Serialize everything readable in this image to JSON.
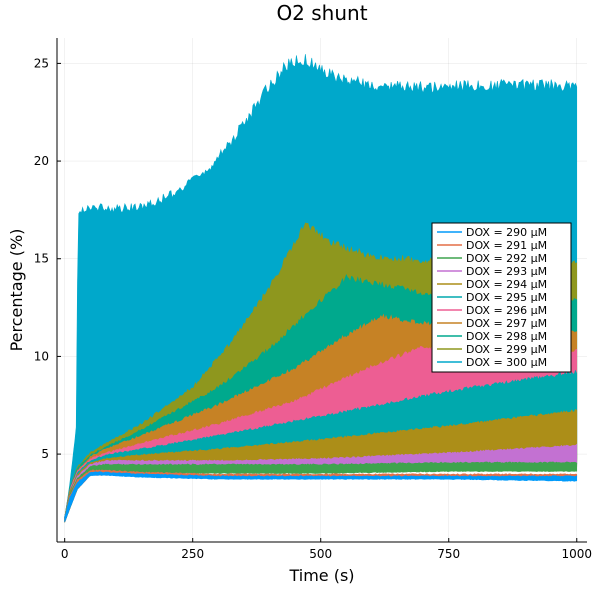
{
  "chart_data": {
    "type": "line",
    "title": "O2 shunt",
    "xlabel": "Time (s)",
    "ylabel": "Percentage (%)",
    "xlim": [
      -15,
      1020
    ],
    "ylim": [
      0.5,
      26.3
    ],
    "xticks": [
      0,
      250,
      500,
      750,
      1000
    ],
    "xtick_labels": [
      "0",
      "250",
      "500",
      "750",
      "1000"
    ],
    "yticks": [
      5,
      10,
      15,
      20,
      25
    ],
    "ytick_labels": [
      "5",
      "10",
      "15",
      "20",
      "25"
    ],
    "grid": true,
    "legend_position": "right",
    "series": [
      {
        "name": "DOX = 290 μM",
        "color": "#009AFA",
        "x": [
          0,
          10,
          25,
          50,
          80,
          150,
          300,
          500,
          750,
          1000
        ],
        "upper": [
          1.8,
          2.8,
          3.6,
          4.1,
          4.1,
          4.0,
          3.9,
          3.9,
          3.9,
          3.9
        ],
        "lower": [
          1.5,
          2.2,
          3.2,
          3.9,
          3.9,
          3.8,
          3.7,
          3.7,
          3.7,
          3.6
        ]
      },
      {
        "name": "DOX = 291 μM",
        "color": "#E36F47",
        "x": [
          0,
          10,
          25,
          50,
          80,
          150,
          300,
          500,
          750,
          1000
        ],
        "upper": [
          1.8,
          2.9,
          3.7,
          4.2,
          4.2,
          4.1,
          4.0,
          4.0,
          4.0,
          4.0
        ],
        "lower": [
          1.5,
          2.2,
          3.2,
          3.9,
          3.9,
          3.9,
          3.8,
          3.8,
          3.8,
          3.8
        ]
      },
      {
        "name": "DOX = 292 μM",
        "color": "#3EA44E",
        "x": [
          0,
          10,
          25,
          50,
          80,
          150,
          300,
          500,
          750,
          1000
        ],
        "upper": [
          1.8,
          3.0,
          3.8,
          4.4,
          4.5,
          4.5,
          4.5,
          4.5,
          4.6,
          4.6
        ],
        "lower": [
          1.5,
          2.2,
          3.2,
          3.9,
          4.0,
          4.0,
          4.0,
          4.0,
          4.1,
          4.1
        ]
      },
      {
        "name": "DOX = 293 μM",
        "color": "#C371D2",
        "x": [
          0,
          10,
          25,
          50,
          80,
          150,
          300,
          500,
          750,
          1000
        ],
        "upper": [
          1.8,
          3.0,
          3.9,
          4.5,
          4.7,
          4.7,
          4.7,
          4.8,
          5.1,
          5.5
        ],
        "lower": [
          1.5,
          2.2,
          3.2,
          3.9,
          4.1,
          4.2,
          4.1,
          4.1,
          4.2,
          4.3
        ]
      },
      {
        "name": "DOX = 294 μM",
        "color": "#AC8E18",
        "x": [
          0,
          10,
          25,
          50,
          80,
          150,
          300,
          500,
          750,
          1000
        ],
        "upper": [
          1.8,
          3.1,
          4.0,
          4.6,
          4.8,
          5.0,
          5.3,
          5.8,
          6.5,
          7.3
        ],
        "lower": [
          1.5,
          2.2,
          3.2,
          3.9,
          4.2,
          4.2,
          4.2,
          4.2,
          4.3,
          4.3
        ]
      },
      {
        "name": "DOX = 295 μM",
        "color": "#00A9AD",
        "x": [
          0,
          10,
          25,
          50,
          80,
          150,
          300,
          500,
          750,
          1000
        ],
        "upper": [
          1.8,
          3.1,
          4.1,
          4.7,
          5.0,
          5.3,
          6.0,
          7.0,
          8.3,
          9.3
        ],
        "lower": [
          1.5,
          2.2,
          3.2,
          3.9,
          4.2,
          4.2,
          4.2,
          4.2,
          4.3,
          4.4
        ]
      },
      {
        "name": "DOX = 296 μM",
        "color": "#ED5E93",
        "x": [
          0,
          10,
          25,
          50,
          80,
          150,
          300,
          450,
          600,
          700,
          800,
          1000
        ],
        "upper": [
          1.8,
          3.2,
          4.2,
          4.8,
          5.1,
          5.6,
          6.6,
          7.8,
          9.6,
          10.6,
          10.4,
          10.4
        ],
        "lower": [
          1.5,
          2.2,
          3.2,
          3.9,
          4.2,
          4.2,
          4.2,
          4.2,
          4.3,
          4.4,
          4.4,
          4.5
        ]
      },
      {
        "name": "DOX = 297 μM",
        "color": "#C68225",
        "x": [
          0,
          10,
          25,
          50,
          80,
          150,
          300,
          450,
          550,
          620,
          700,
          850,
          1000
        ],
        "upper": [
          1.8,
          3.2,
          4.2,
          4.9,
          5.3,
          6.0,
          7.6,
          9.5,
          11.2,
          12.2,
          11.8,
          11.4,
          11.4
        ],
        "lower": [
          1.5,
          2.2,
          3.2,
          3.9,
          4.2,
          4.2,
          4.2,
          4.3,
          4.3,
          4.4,
          4.4,
          4.5,
          4.5
        ]
      },
      {
        "name": "DOX = 298 μM",
        "color": "#00A98D",
        "x": [
          0,
          10,
          25,
          50,
          80,
          150,
          300,
          400,
          480,
          550,
          700,
          850,
          1000
        ],
        "upper": [
          1.8,
          3.3,
          4.3,
          5.0,
          5.4,
          6.3,
          8.5,
          10.5,
          12.5,
          14.2,
          13.4,
          13.1,
          13.1
        ],
        "lower": [
          1.5,
          2.2,
          3.2,
          3.9,
          4.2,
          4.2,
          4.2,
          4.3,
          4.3,
          4.3,
          4.4,
          4.5,
          4.5
        ]
      },
      {
        "name": "DOX = 299 μM",
        "color": "#8E971E",
        "x": [
          0,
          10,
          25,
          50,
          80,
          150,
          250,
          330,
          400,
          450,
          470,
          520,
          600,
          750,
          1000
        ],
        "upper": [
          1.8,
          3.3,
          4.4,
          5.1,
          5.6,
          6.6,
          8.5,
          11.0,
          13.7,
          16.0,
          17.0,
          16.0,
          15.3,
          15.0,
          15.0
        ],
        "lower": [
          1.5,
          2.2,
          3.2,
          3.9,
          4.2,
          4.2,
          4.2,
          4.2,
          4.3,
          4.3,
          4.3,
          4.3,
          4.4,
          4.4,
          4.5
        ]
      },
      {
        "name": "DOX = 300 μM",
        "color": "#00A8CB",
        "x": [
          0,
          10,
          23,
          26,
          60,
          100,
          150,
          200,
          250,
          300,
          350,
          400,
          440,
          470,
          520,
          600,
          700,
          850,
          1000
        ],
        "upper": [
          1.8,
          3.5,
          6.5,
          17.7,
          17.9,
          17.8,
          17.9,
          18.4,
          19.2,
          20.4,
          22.2,
          24.2,
          25.4,
          25.5,
          24.7,
          24.2,
          24.1,
          24.2,
          24.2
        ],
        "lower": [
          1.5,
          2.2,
          3.2,
          3.6,
          4.0,
          4.2,
          4.2,
          4.2,
          4.2,
          4.2,
          4.2,
          4.3,
          4.3,
          4.3,
          4.3,
          4.4,
          4.4,
          4.5,
          4.5
        ]
      }
    ]
  }
}
